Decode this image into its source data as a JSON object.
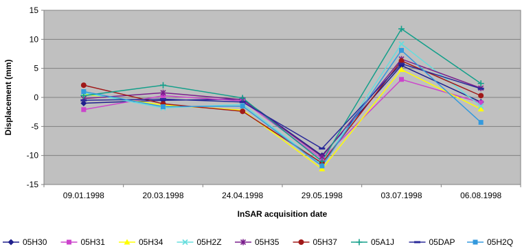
{
  "chart_data": {
    "type": "line",
    "title": "",
    "xlabel": "InSAR acquisition date",
    "ylabel": "Displacement (mm)",
    "ylim": [
      -15,
      15
    ],
    "yticks": [
      -15,
      -10,
      -5,
      0,
      5,
      10,
      15
    ],
    "grid": true,
    "legend_position": "bottom",
    "plot_background": "#c0c0c0",
    "categories": [
      "09.01.1998",
      "20.03.1998",
      "24.04.1998",
      "29.05.1998",
      "03.07.1998",
      "06.08.1998"
    ],
    "series": [
      {
        "name": "05H30",
        "color": "#1f1f8c",
        "marker": "diamond",
        "values": [
          -1.0,
          -0.5,
          -0.3,
          -10.0,
          5.5,
          -0.8
        ]
      },
      {
        "name": "05H31",
        "color": "#cc44cc",
        "marker": "square",
        "values": [
          -2.1,
          0.3,
          -0.6,
          -10.6,
          3.1,
          -0.9
        ]
      },
      {
        "name": "05H34",
        "color": "#ffff00",
        "marker": "triangle",
        "values": [
          0.6,
          -1.3,
          -2.2,
          -12.3,
          4.8,
          -2.0
        ]
      },
      {
        "name": "05H2Z",
        "color": "#66dddd",
        "marker": "x",
        "values": [
          0.8,
          -1.8,
          -1.2,
          -11.6,
          9.2,
          -1.5
        ]
      },
      {
        "name": "05H35",
        "color": "#7a1f8c",
        "marker": "star",
        "values": [
          -0.2,
          0.8,
          -0.4,
          -10.2,
          6.6,
          1.6
        ]
      },
      {
        "name": "05H37",
        "color": "#a01818",
        "marker": "circle",
        "values": [
          2.1,
          -1.1,
          -2.4,
          -11.3,
          6.3,
          0.3
        ]
      },
      {
        "name": "05A1J",
        "color": "#139f8a",
        "marker": "plus",
        "values": [
          0.3,
          2.1,
          -0.1,
          -11.0,
          11.8,
          2.4
        ]
      },
      {
        "name": "05DAP",
        "color": "#2a2a99",
        "marker": "dash",
        "values": [
          -0.5,
          -0.3,
          -0.8,
          -8.8,
          5.8,
          1.5
        ]
      },
      {
        "name": "05H2Q",
        "color": "#3399dd",
        "marker": "square",
        "values": [
          1.0,
          -1.6,
          -1.5,
          -11.8,
          8.1,
          -4.3
        ]
      }
    ]
  }
}
